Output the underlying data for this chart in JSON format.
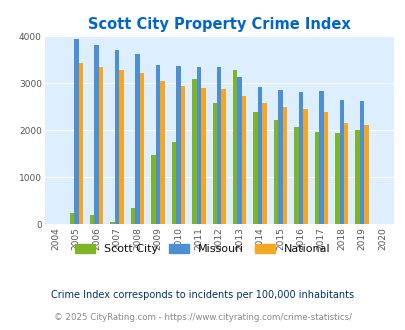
{
  "title": "Scott City Property Crime Index",
  "years": [
    "2004",
    "2005",
    "2006",
    "2007",
    "2008",
    "2009",
    "2010",
    "2011",
    "2012",
    "2013",
    "2014",
    "2015",
    "2016",
    "2017",
    "2018",
    "2019",
    "2020"
  ],
  "scott_city": [
    0,
    240,
    200,
    60,
    340,
    1470,
    1760,
    3090,
    2590,
    3290,
    2400,
    2230,
    2080,
    1970,
    1940,
    2010,
    0
  ],
  "missouri": [
    0,
    3940,
    3820,
    3710,
    3620,
    3400,
    3360,
    3350,
    3340,
    3140,
    2930,
    2860,
    2820,
    2840,
    2640,
    2630,
    0
  ],
  "national": [
    0,
    3430,
    3340,
    3280,
    3210,
    3040,
    2940,
    2910,
    2870,
    2720,
    2590,
    2500,
    2450,
    2380,
    2160,
    2110,
    0
  ],
  "scott_city_color": "#7db526",
  "missouri_color": "#4d8fd4",
  "national_color": "#f5a623",
  "bg_color": "#ddeeff",
  "title_color": "#0066cc",
  "footnote1": "Crime Index corresponds to incidents per 100,000 inhabitants",
  "footnote2": "© 2025 CityRating.com - https://www.cityrating.com/crime-statistics/",
  "ylim": [
    0,
    4000
  ],
  "yticks": [
    0,
    1000,
    2000,
    3000,
    4000
  ],
  "bar_width": 0.22,
  "figsize": [
    4.06,
    3.3
  ],
  "dpi": 100
}
